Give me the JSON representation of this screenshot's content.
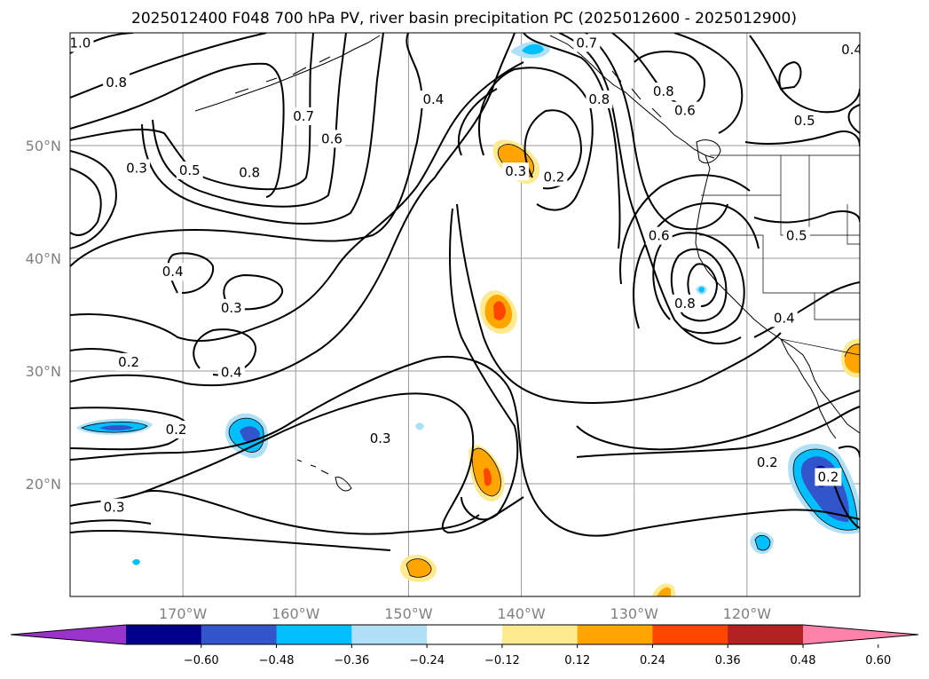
{
  "title": "2025012400 F048 700 hPa PV, river basin precipitation PC (2025012600 - 2025012900)",
  "map": {
    "extent_lon": [
      -180,
      -110
    ],
    "extent_lat": [
      10,
      60
    ],
    "projection": "PlateCarree",
    "grid": true,
    "lon_ticks": [
      {
        "lon": -170,
        "label": "170°W"
      },
      {
        "lon": -160,
        "label": "160°W"
      },
      {
        "lon": -150,
        "label": "150°W"
      },
      {
        "lon": -140,
        "label": "140°W"
      },
      {
        "lon": -130,
        "label": "130°W"
      },
      {
        "lon": -120,
        "label": "120°W"
      }
    ],
    "lat_ticks": [
      {
        "lat": 20,
        "label": "20°N"
      },
      {
        "lat": 30,
        "label": "30°N"
      },
      {
        "lat": 40,
        "label": "40°N"
      },
      {
        "lat": 50,
        "label": "50°N"
      }
    ],
    "contour_field": "700 hPa PV",
    "contour_levels": [
      0.2,
      0.3,
      0.4,
      0.5,
      0.6,
      0.7,
      0.8,
      1.0
    ],
    "contour_labels": [
      {
        "text": "1.0",
        "lon": -179.1,
        "lat": 59.1
      },
      {
        "text": "0.8",
        "lon": -175.9,
        "lat": 55.6
      },
      {
        "text": "0.8",
        "lon": -164.1,
        "lat": 47.6
      },
      {
        "text": "0.7",
        "lon": -159.3,
        "lat": 52.6
      },
      {
        "text": "0.6",
        "lon": -156.8,
        "lat": 50.6
      },
      {
        "text": "0.5",
        "lon": -169.4,
        "lat": 47.8
      },
      {
        "text": "0.3",
        "lon": -174.1,
        "lat": 48.0
      },
      {
        "text": "0.4",
        "lon": -147.8,
        "lat": 54.1
      },
      {
        "text": "0.7",
        "lon": -134.2,
        "lat": 59.1
      },
      {
        "text": "0.8",
        "lon": -133.1,
        "lat": 54.1
      },
      {
        "text": "0.8",
        "lon": -127.4,
        "lat": 54.8
      },
      {
        "text": "0.6",
        "lon": -125.5,
        "lat": 53.1
      },
      {
        "text": "0.4",
        "lon": -110.7,
        "lat": 58.5
      },
      {
        "text": "0.5",
        "lon": -114.9,
        "lat": 52.2
      },
      {
        "text": "0.5",
        "lon": -115.6,
        "lat": 42.0
      },
      {
        "text": "0.3",
        "lon": -140.5,
        "lat": 47.7
      },
      {
        "text": "0.2",
        "lon": -137.1,
        "lat": 47.2
      },
      {
        "text": "0.6",
        "lon": -127.8,
        "lat": 42.0
      },
      {
        "text": "0.8",
        "lon": -125.5,
        "lat": 36.0
      },
      {
        "text": "0.4",
        "lon": -116.7,
        "lat": 34.7
      },
      {
        "text": "0.4",
        "lon": -170.9,
        "lat": 38.8
      },
      {
        "text": "0.3",
        "lon": -165.7,
        "lat": 35.6
      },
      {
        "text": "0.2",
        "lon": -174.8,
        "lat": 30.8
      },
      {
        "text": "0.4",
        "lon": -165.7,
        "lat": 29.9
      },
      {
        "text": "0.2",
        "lon": -170.6,
        "lat": 24.8
      },
      {
        "text": "0.3",
        "lon": -152.5,
        "lat": 24.0
      },
      {
        "text": "0.3",
        "lon": -176.1,
        "lat": 17.9
      },
      {
        "text": "0.2",
        "lon": -118.2,
        "lat": 21.9
      },
      {
        "text": "0.2",
        "lon": -112.8,
        "lat": 20.6
      }
    ],
    "shading_field": "river basin precipitation PC"
  },
  "colorbar": {
    "extend": "both",
    "bins": [
      {
        "color": "#9933cc"
      },
      {
        "color": "#00008b"
      },
      {
        "color": "#3355cc"
      },
      {
        "color": "#00bfff"
      },
      {
        "color": "#b0e0f5"
      },
      {
        "color": "#ffffff"
      },
      {
        "color": "#ffeb8f"
      },
      {
        "color": "#ffa500"
      },
      {
        "color": "#ff4500"
      },
      {
        "color": "#b22222"
      },
      {
        "color": "#ff82aa"
      }
    ],
    "tick_labels": [
      "−0.60",
      "−0.48",
      "−0.36",
      "−0.24",
      "−0.12",
      "0.12",
      "0.24",
      "0.36",
      "0.48",
      "0.60"
    ]
  }
}
